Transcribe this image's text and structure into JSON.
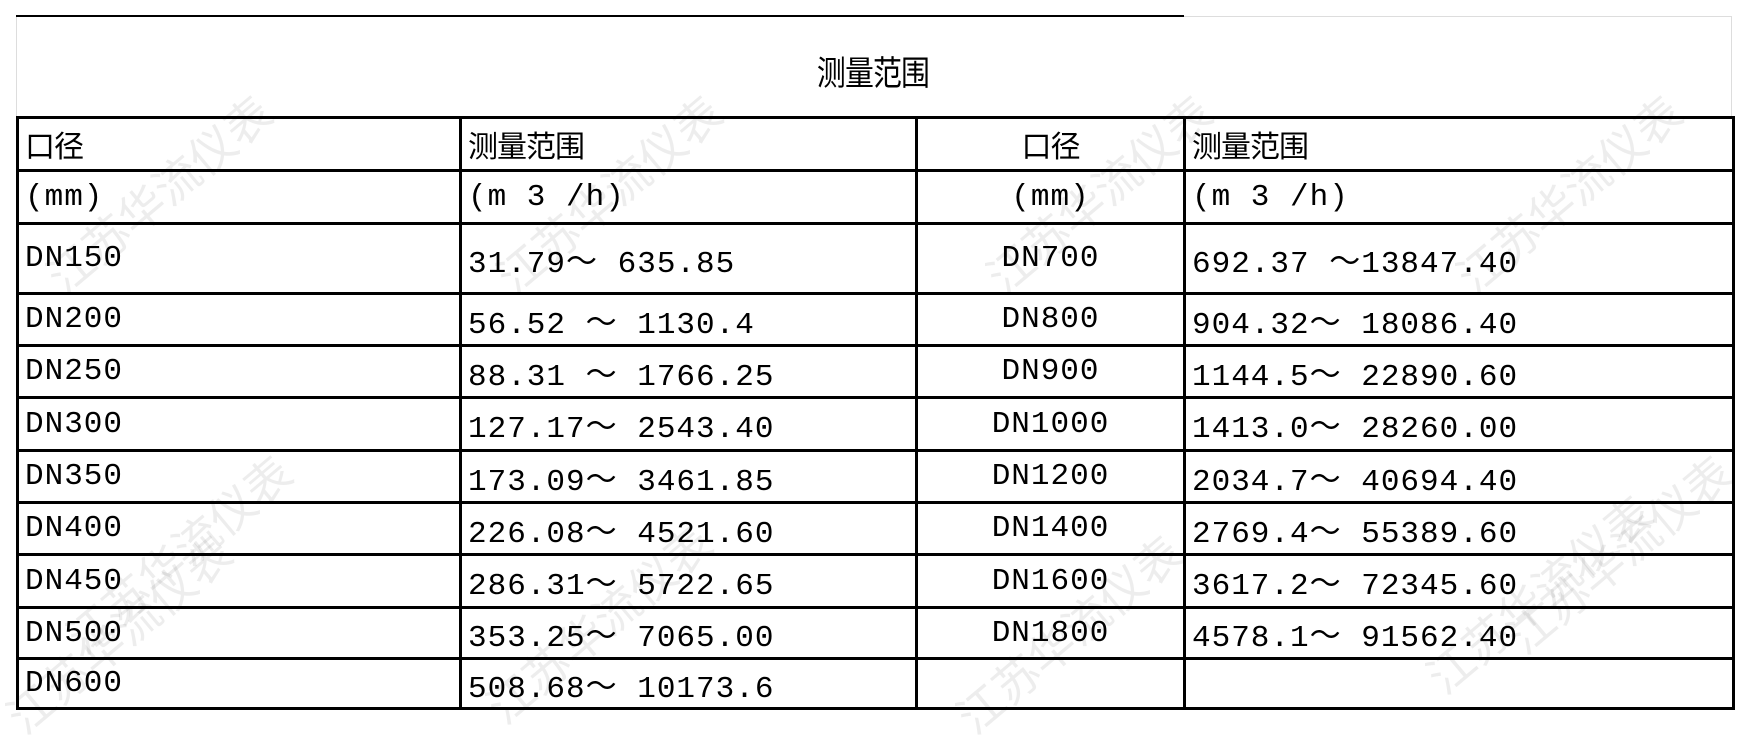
{
  "title": "测量范围",
  "watermark": "江苏华流仪表",
  "headers": {
    "left": {
      "size_label": "口径",
      "size_unit": "(mm)",
      "range_label": "测量范围",
      "range_unit": "(m 3 /h)"
    },
    "right": {
      "size_label": "口径",
      "size_unit": "(mm)",
      "range_label": "测量范围",
      "range_unit": "(m 3 /h)"
    }
  },
  "rows": [
    {
      "left_size": "DN150",
      "left_range": "31.79～ 635.85",
      "right_size": "DN700",
      "right_range": "692.37 ～13847.40"
    },
    {
      "left_size": "DN200",
      "left_range": "56.52 ～ 1130.4",
      "right_size": "DN800",
      "right_range": "904.32～ 18086.40"
    },
    {
      "left_size": "DN250",
      "left_range": "88.31 ～ 1766.25",
      "right_size": "DN900",
      "right_range": "1144.5～ 22890.60"
    },
    {
      "left_size": "DN300",
      "left_range": "127.17～ 2543.40",
      "right_size": "DN1000",
      "right_range": "1413.0～ 28260.00"
    },
    {
      "left_size": "DN350",
      "left_range": "173.09～ 3461.85",
      "right_size": "DN1200",
      "right_range": "2034.7～ 40694.40"
    },
    {
      "left_size": "DN400",
      "left_range": "226.08～ 4521.60",
      "right_size": "DN1400",
      "right_range": "2769.4～ 55389.60"
    },
    {
      "left_size": "DN450",
      "left_range": "286.31～ 5722.65",
      "right_size": "DN1600",
      "right_range": "3617.2～ 72345.60"
    },
    {
      "left_size": "DN500",
      "left_range": "353.25～ 7065.00",
      "right_size": "DN1800",
      "right_range": "4578.1～ 91562.40"
    },
    {
      "left_size": "DN600",
      "left_range": "508.68～ 10173.6",
      "right_size": "",
      "right_range": ""
    }
  ]
}
